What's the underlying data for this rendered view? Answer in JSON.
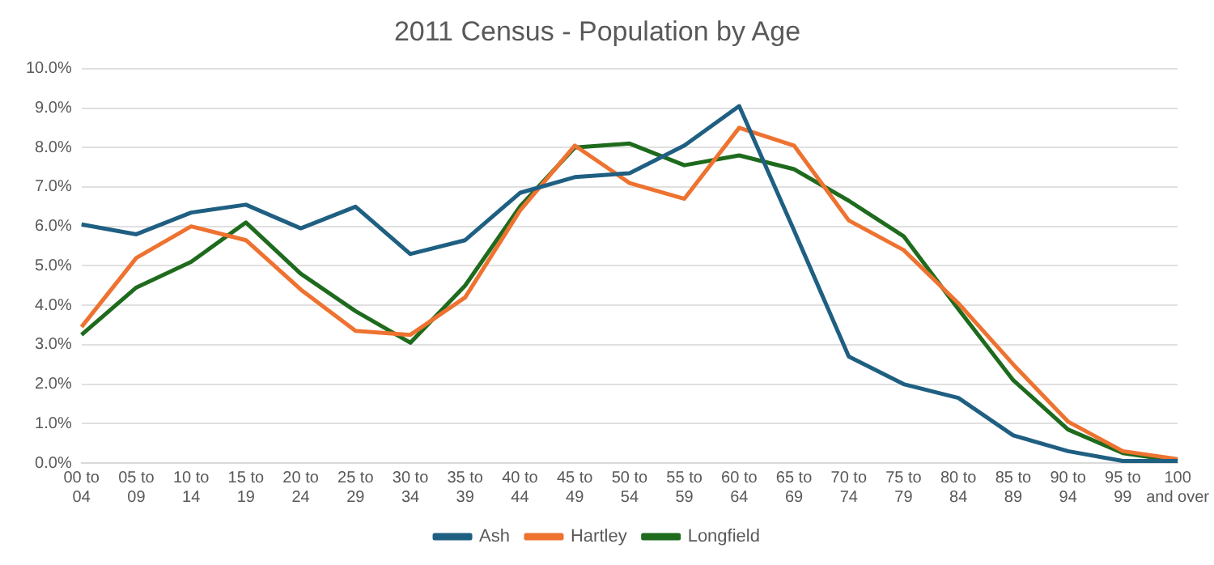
{
  "chart_data": {
    "type": "line",
    "title": "2011 Census - Population by Age",
    "categories": [
      "00 to 04",
      "05 to 09",
      "10 to 14",
      "15 to 19",
      "20 to 24",
      "25 to 29",
      "30 to 34",
      "35 to 39",
      "40 to 44",
      "45 to 49",
      "50 to 54",
      "55 to 59",
      "60 to 64",
      "65 to 69",
      "70 to 74",
      "75 to 79",
      "80 to 84",
      "85 to 89",
      "90 to 94",
      "95 to 99",
      "100 and over"
    ],
    "series": [
      {
        "name": "Ash",
        "color": "#1f5f82",
        "values": [
          6.05,
          5.8,
          6.35,
          6.55,
          5.95,
          6.5,
          5.3,
          5.65,
          6.85,
          7.25,
          7.35,
          8.05,
          9.05,
          5.9,
          2.7,
          2.0,
          1.65,
          0.7,
          0.3,
          0.05,
          0.05
        ]
      },
      {
        "name": "Hartley",
        "color": "#ee7230",
        "values": [
          3.45,
          5.2,
          6.0,
          5.65,
          4.4,
          3.35,
          3.25,
          4.2,
          6.4,
          8.05,
          7.1,
          6.7,
          8.5,
          8.05,
          6.15,
          5.4,
          4.05,
          2.5,
          1.05,
          0.3,
          0.1
        ]
      },
      {
        "name": "Longfield",
        "color": "#1e6b1e",
        "values": [
          3.25,
          4.45,
          5.1,
          6.1,
          4.8,
          3.85,
          3.05,
          4.5,
          6.5,
          8.0,
          8.1,
          7.55,
          7.8,
          7.45,
          6.65,
          5.75,
          3.9,
          2.1,
          0.85,
          0.25,
          0.05
        ]
      }
    ],
    "ylim": [
      0,
      10
    ],
    "yticks": [
      {
        "value": 0,
        "label": "0.0%"
      },
      {
        "value": 1,
        "label": "1.0%"
      },
      {
        "value": 2,
        "label": "2.0%"
      },
      {
        "value": 3,
        "label": "3.0%"
      },
      {
        "value": 4,
        "label": "4.0%"
      },
      {
        "value": 5,
        "label": "5.0%"
      },
      {
        "value": 6,
        "label": "6.0%"
      },
      {
        "value": 7,
        "label": "7.0%"
      },
      {
        "value": 8,
        "label": "8.0%"
      },
      {
        "value": 9,
        "label": "9.0%"
      },
      {
        "value": 10,
        "label": "10.0%"
      }
    ],
    "grid": "y",
    "legend": "bottom",
    "marker": "none",
    "line_style": "solid"
  }
}
